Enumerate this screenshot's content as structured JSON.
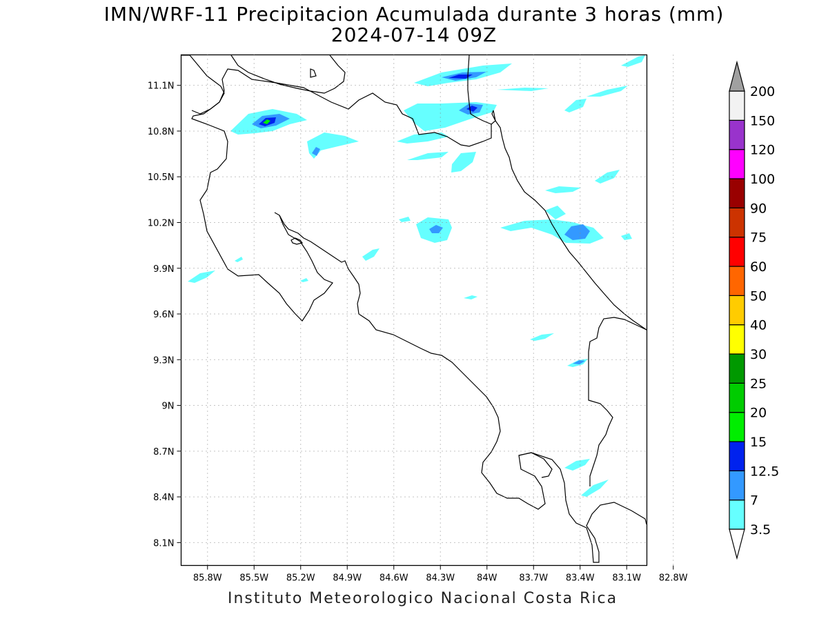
{
  "title": {
    "line1": "IMN/WRF-11 Precipitacion Acumulada durante 3 horas (mm)",
    "line2": "2024-07-14 09Z"
  },
  "footer": "Instituto Meteorologico Nacional Costa Rica",
  "map": {
    "lat_range": [
      7.95,
      11.3
    ],
    "lon_range": [
      -85.97,
      -82.97
    ],
    "lat_ticks": [
      "11.1N",
      "10.8N",
      "10.5N",
      "10.2N",
      "9.9N",
      "9.6N",
      "9.3N",
      "9N",
      "8.7N",
      "8.4N",
      "8.1N"
    ],
    "lon_ticks": [
      "85.8W",
      "85.5W",
      "85.2W",
      "84.9W",
      "84.6W",
      "84.3W",
      "84W",
      "83.7W",
      "83.4W",
      "83.1W",
      "82.8W"
    ],
    "grid": "dotted"
  },
  "colorbar": {
    "levels": [
      "3.5",
      "7",
      "12.5",
      "15",
      "20",
      "25",
      "30",
      "40",
      "50",
      "60",
      "75",
      "90",
      "100",
      "120",
      "150",
      "200"
    ],
    "colors": [
      "#66ffff",
      "#3399ff",
      "#0022ee",
      "#00ee00",
      "#00cc00",
      "#009900",
      "#ffff00",
      "#ffcc00",
      "#ff6600",
      "#ff0000",
      "#cc3300",
      "#990000",
      "#ff00ff",
      "#9933cc",
      "#f2f2f2",
      "#a0a0a0"
    ],
    "under_color": "#ffffff",
    "over_color": "#a0a0a0"
  }
}
